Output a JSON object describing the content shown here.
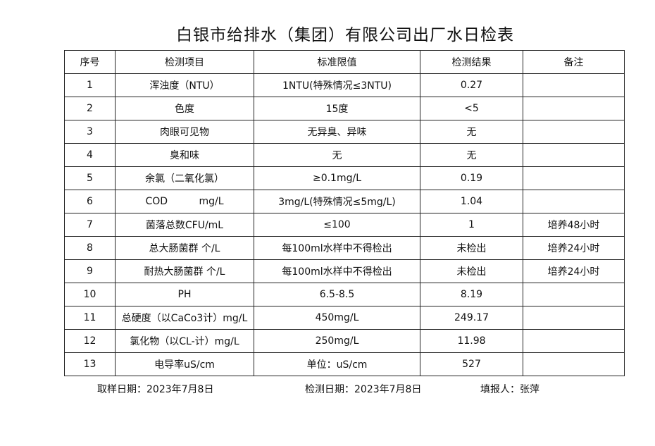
{
  "title": "白银市给排水（集团）有限公司出厂水日检表",
  "headers": [
    "序号",
    "检测项目",
    "标准限值",
    "检测结果",
    "备注"
  ],
  "rows": [
    [
      "1",
      "浑浊度（NTU）",
      "1NTU(特殊情况≤3NTU)",
      "0.27",
      ""
    ],
    [
      "2",
      "色度",
      "15度",
      "<5",
      ""
    ],
    [
      "3",
      "肉眼可见物",
      "无异臭、异味",
      "无",
      ""
    ],
    [
      "4",
      "臭和味",
      "无",
      "无",
      ""
    ],
    [
      "5",
      "余氯（二氧化氯）",
      "≥0.1mg/L",
      "0.19",
      ""
    ],
    [
      "6",
      "COD          mg/L",
      "3mg/L(特殊情况≤5mg/L)",
      "1.04",
      ""
    ],
    [
      "7",
      "菌落总数CFU/mL",
      "≤100",
      "1",
      "培养48小时"
    ],
    [
      "8",
      "总大肠菌群 个/L",
      "每100ml水样中不得检出",
      "未检出",
      "培养24小时"
    ],
    [
      "9",
      "耐热大肠菌群 个/L",
      "每100ml水样中不得检出",
      "未检出",
      "培养24小时"
    ],
    [
      "10",
      "PH",
      "6.5-8.5",
      "8.19",
      ""
    ],
    [
      "11",
      "总硬度（以CaCo3计）mg/L",
      "450mg/L",
      "249.17",
      ""
    ],
    [
      "12",
      "氯化物（以CL-计）mg/L",
      "250mg/L",
      "11.98",
      ""
    ],
    [
      "13",
      "电导率uS/cm",
      "单位：uS/cm",
      "527",
      ""
    ]
  ],
  "footer": {
    "sampling_date": "取样日期：2023年7月8日",
    "test_date": "检测日期：2023年7月8日",
    "reporter": "填报人：张萍"
  }
}
